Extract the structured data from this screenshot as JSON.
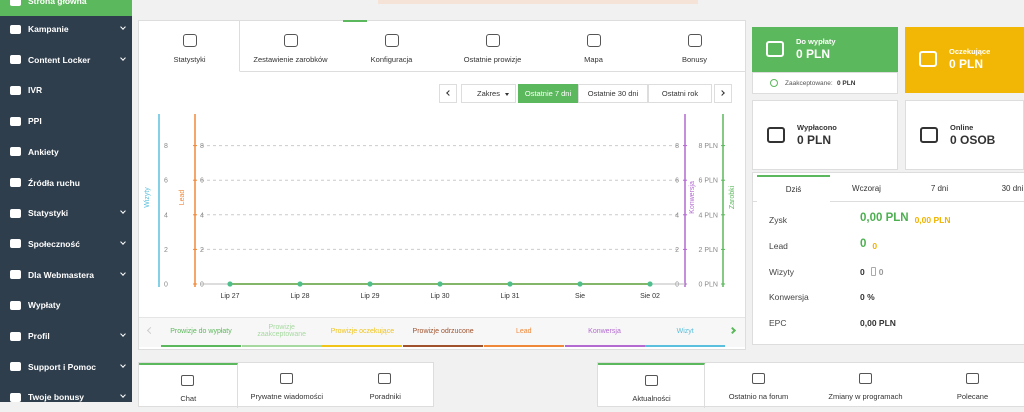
{
  "sidebar": {
    "items": [
      {
        "label": "Strona główna",
        "has_submenu": false,
        "active": true
      },
      {
        "label": "Kampanie",
        "has_submenu": true,
        "active": false
      },
      {
        "label": "Content Locker",
        "has_submenu": true,
        "active": false
      },
      {
        "label": "IVR",
        "has_submenu": false,
        "active": false
      },
      {
        "label": "PPI",
        "has_submenu": false,
        "active": false
      },
      {
        "label": "Ankiety",
        "has_submenu": false,
        "active": false
      },
      {
        "label": "Źródła ruchu",
        "has_submenu": false,
        "active": false
      },
      {
        "label": "Statystyki",
        "has_submenu": true,
        "active": false
      },
      {
        "label": "Społeczność",
        "has_submenu": true,
        "active": false
      },
      {
        "label": "Dla Webmastera",
        "has_submenu": true,
        "active": false
      },
      {
        "label": "Wypłaty",
        "has_submenu": false,
        "active": false
      },
      {
        "label": "Profil",
        "has_submenu": true,
        "active": false
      },
      {
        "label": "Support i Pomoc",
        "has_submenu": true,
        "active": false
      },
      {
        "label": "Twoje bonusy",
        "has_submenu": true,
        "active": false
      }
    ]
  },
  "main_tabs": {
    "items": [
      "Statystyki",
      "Zestawienie zarobków",
      "Konfiguracja",
      "Ostatnie prowizje",
      "Mapa",
      "Bonusy"
    ],
    "active": 0
  },
  "range_controls": {
    "dropdown": "Zakres",
    "options": [
      "Ostatnie 7 dni",
      "Ostatnie 30 dni",
      "Ostatni rok"
    ],
    "active": 0
  },
  "chart_data": {
    "type": "line",
    "categories": [
      "Lip 27",
      "Lip 28",
      "Lip 29",
      "Lip 30",
      "Lip 31",
      "Sie",
      "Sie 02"
    ],
    "grid": true,
    "axes": [
      {
        "label": "Wizyty",
        "color": "#5bc0de",
        "ylim": [
          0,
          10
        ],
        "yticks": [
          0,
          2,
          4,
          6,
          8
        ]
      },
      {
        "label": "Lead",
        "color": "#f0883a",
        "ylim": [
          0,
          10
        ],
        "yticks": [
          0,
          2,
          4,
          6,
          8
        ]
      },
      {
        "label": "Konwersja",
        "color": "#b36ad1",
        "ylim": [
          0,
          10
        ],
        "yticks": [
          0,
          2,
          4,
          6,
          8
        ]
      },
      {
        "label": "Zarobki",
        "color": "#5cb85c",
        "ylim": [
          0,
          10
        ],
        "yticks": [
          {
            "value": 0,
            "label": "0 PLN"
          },
          {
            "value": 2,
            "label": "2 PLN"
          },
          {
            "value": 4,
            "label": "4 PLN"
          },
          {
            "value": 6,
            "label": "6 PLN"
          },
          {
            "value": 8,
            "label": "8 PLN"
          }
        ]
      }
    ],
    "series": [
      {
        "name": "Prowizje do wypłaty",
        "color": "#5cb85c",
        "axis": 3,
        "markers": true,
        "values": [
          0,
          0,
          0,
          0,
          0,
          0,
          0
        ]
      },
      {
        "name": "Prowizje zaakceptowane",
        "color": "#a6d9a0",
        "axis": 3,
        "markers": false,
        "values": [
          0,
          0,
          0,
          0,
          0,
          0,
          0
        ]
      },
      {
        "name": "Prowizje oczekujące",
        "color": "#f0c419",
        "axis": 3,
        "markers": false,
        "values": [
          0,
          0,
          0,
          0,
          0,
          0,
          0
        ]
      },
      {
        "name": "Prowizje odrzucone",
        "color": "#a0522d",
        "axis": 3,
        "markers": false,
        "values": [
          0,
          0,
          0,
          0,
          0,
          0,
          0
        ]
      },
      {
        "name": "Lead",
        "color": "#f0883a",
        "axis": 1,
        "markers": false,
        "values": [
          0,
          0,
          0,
          0,
          0,
          0,
          0
        ]
      },
      {
        "name": "Konwersja",
        "color": "#b36ad1",
        "axis": 2,
        "markers": false,
        "values": [
          0,
          0,
          0,
          0,
          0,
          0,
          0
        ]
      },
      {
        "name": "Wizyt",
        "color": "#5bc0de",
        "axis": 0,
        "markers": false,
        "values": [
          0,
          0,
          0,
          0,
          0,
          0,
          0
        ]
      }
    ]
  },
  "summary_cards": [
    {
      "title": "Do wypłaty",
      "value": "0 PLN",
      "color": "#5cb85c",
      "note_label": "Zaakceptowane:",
      "note_value": "0 PLN"
    },
    {
      "title": "Oczekujące",
      "value": "0 PLN",
      "color": "#f2b705"
    },
    {
      "title": "Wypłacono",
      "value": "0 PLN",
      "color": "#ffffff"
    },
    {
      "title": "Online",
      "value": "0 OSOB",
      "color": "#ffffff"
    }
  ],
  "stats_panel": {
    "tabs": [
      "Dziś",
      "Wczoraj",
      "7 dni",
      "30 dni"
    ],
    "active": 0,
    "rows": [
      {
        "label": "Zysk",
        "values": [
          {
            "text": "0,00 PLN",
            "color": "#4caf50",
            "big": true
          },
          {
            "text": "0,00 PLN",
            "color": "#f0b400",
            "big": false
          }
        ]
      },
      {
        "label": "Lead",
        "values": [
          {
            "text": "0",
            "color": "#4caf50",
            "big": true
          },
          {
            "text": "0",
            "color": "#f0b400",
            "big": false
          }
        ]
      },
      {
        "label": "Wizyty",
        "values": [
          {
            "text": "0",
            "color": "#333333",
            "big": false
          },
          {
            "text": "0",
            "color": "#999999",
            "big": false,
            "mobile": true
          }
        ]
      },
      {
        "label": "Konwersja",
        "values": [
          {
            "text": "0 %",
            "color": "#333333",
            "big": false
          }
        ]
      },
      {
        "label": "EPC",
        "values": [
          {
            "text": "0,00 PLN",
            "color": "#333333",
            "big": false
          }
        ]
      }
    ]
  },
  "bottom_left": {
    "tabs": [
      "Chat",
      "Prywatne wiadomości",
      "Poradniki"
    ],
    "active": 0
  },
  "bottom_right": {
    "tabs": [
      "Aktualności",
      "Ostatnio na forum",
      "Zmiany w programach",
      "Polecane"
    ],
    "active": 0
  }
}
